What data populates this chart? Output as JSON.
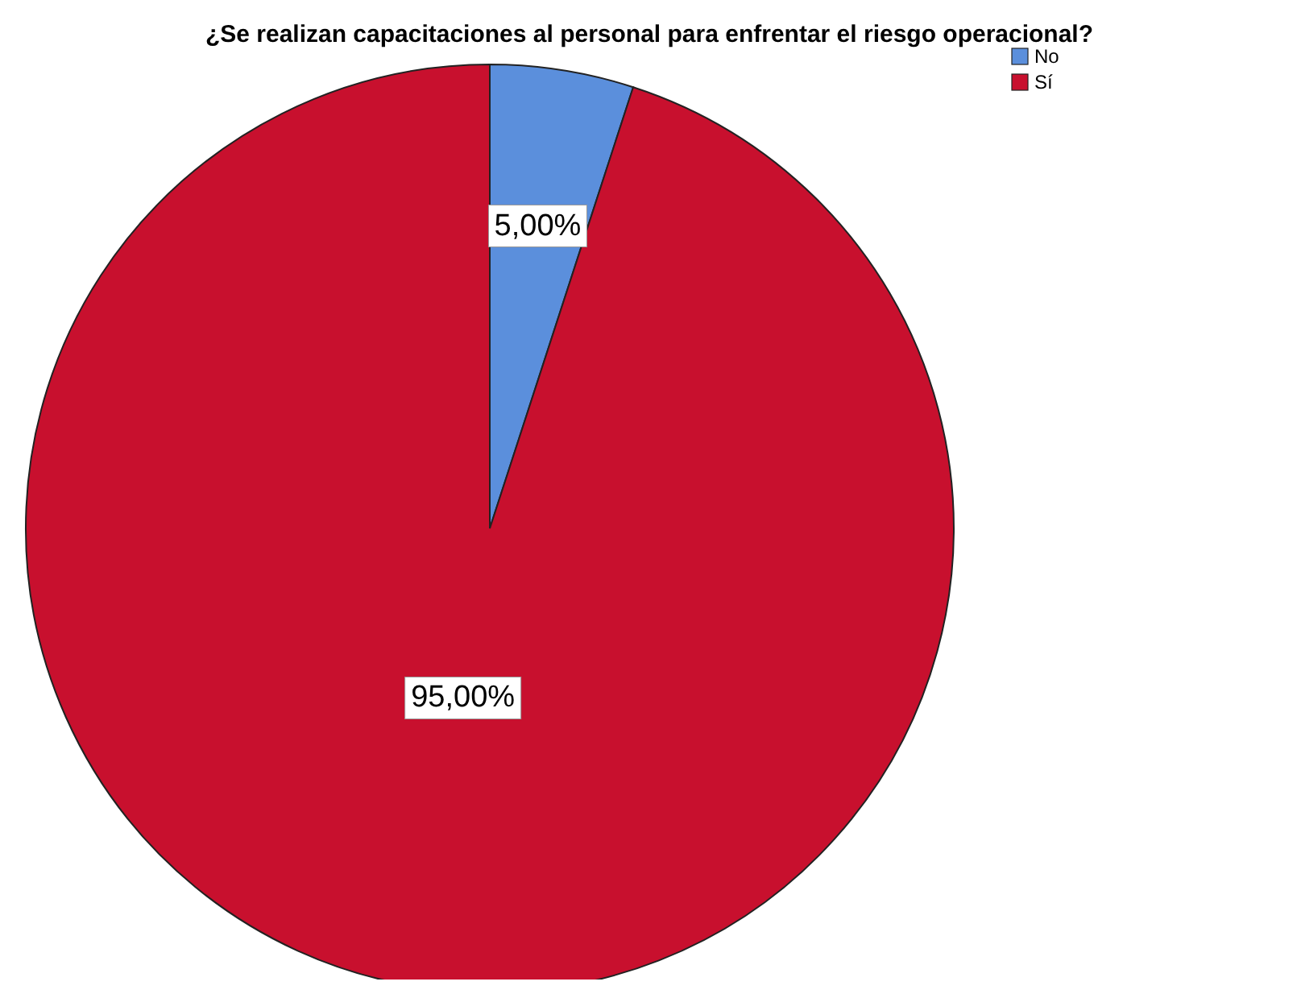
{
  "chart_data": {
    "type": "pie",
    "title": "¿Se realizan capacitaciones al personal para enfrentar el riesgo operacional?",
    "categories": [
      "No",
      "Sí"
    ],
    "values": [
      5,
      95
    ],
    "colors": [
      "#5b8fdc",
      "#c8102e"
    ],
    "value_labels": [
      "5,00%",
      "95,00%"
    ],
    "legend": "top right"
  }
}
